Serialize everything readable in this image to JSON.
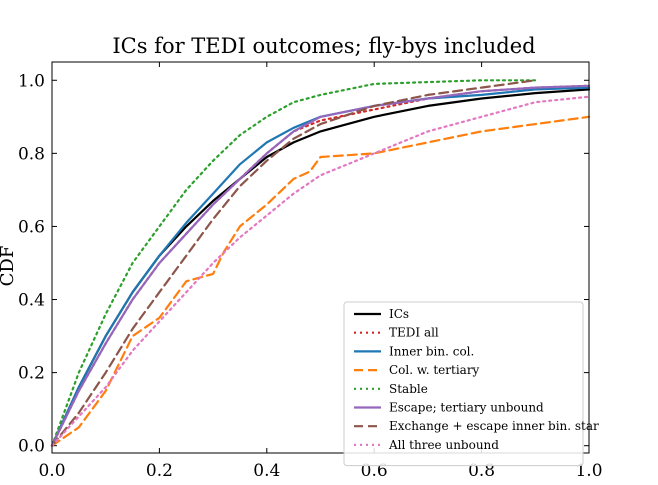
{
  "chart_data": {
    "type": "line",
    "title": "ICs for TEDI outcomes; fly-bys included",
    "xlabel": "",
    "ylabel": "CDF",
    "xlim": [
      0.0,
      1.0
    ],
    "ylim": [
      -0.02,
      1.05
    ],
    "xticks": [
      "0.0",
      "0.2",
      "0.4",
      "0.6",
      "0.8",
      "1.0"
    ],
    "yticks": [
      "0.0",
      "0.2",
      "0.4",
      "0.6",
      "0.8",
      "1.0"
    ],
    "legend_position": "lower-right",
    "series": [
      {
        "name": "ICs",
        "color": "#000000",
        "style": "solid",
        "points": [
          [
            0,
            0
          ],
          [
            0.05,
            0.16
          ],
          [
            0.1,
            0.3
          ],
          [
            0.15,
            0.42
          ],
          [
            0.2,
            0.52
          ],
          [
            0.25,
            0.6
          ],
          [
            0.3,
            0.67
          ],
          [
            0.35,
            0.73
          ],
          [
            0.4,
            0.79
          ],
          [
            0.45,
            0.83
          ],
          [
            0.5,
            0.86
          ],
          [
            0.6,
            0.9
          ],
          [
            0.7,
            0.93
          ],
          [
            0.8,
            0.95
          ],
          [
            0.9,
            0.965
          ],
          [
            1.0,
            0.975
          ]
        ]
      },
      {
        "name": "TEDI all",
        "color": "#d62728",
        "style": "dotted",
        "points": [
          [
            0,
            0
          ],
          [
            0.05,
            0.15
          ],
          [
            0.1,
            0.28
          ],
          [
            0.15,
            0.4
          ],
          [
            0.2,
            0.5
          ],
          [
            0.25,
            0.58
          ],
          [
            0.3,
            0.66
          ],
          [
            0.35,
            0.73
          ],
          [
            0.4,
            0.8
          ],
          [
            0.45,
            0.86
          ],
          [
            0.5,
            0.89
          ],
          [
            0.6,
            0.92
          ],
          [
            0.7,
            0.95
          ],
          [
            0.8,
            0.97
          ],
          [
            0.9,
            0.98
          ],
          [
            1.0,
            0.985
          ]
        ]
      },
      {
        "name": "Inner bin. col.",
        "color": "#1f77b4",
        "style": "solid",
        "points": [
          [
            0,
            0
          ],
          [
            0.05,
            0.16
          ],
          [
            0.1,
            0.3
          ],
          [
            0.15,
            0.42
          ],
          [
            0.2,
            0.52
          ],
          [
            0.25,
            0.61
          ],
          [
            0.3,
            0.69
          ],
          [
            0.35,
            0.77
          ],
          [
            0.4,
            0.83
          ],
          [
            0.45,
            0.87
          ],
          [
            0.5,
            0.9
          ],
          [
            0.6,
            0.93
          ],
          [
            0.7,
            0.95
          ],
          [
            0.8,
            0.96
          ],
          [
            0.9,
            0.975
          ],
          [
            1.0,
            0.98
          ]
        ]
      },
      {
        "name": "Col. w. tertiary",
        "color": "#ff7f0e",
        "style": "dashed",
        "points": [
          [
            0,
            0
          ],
          [
            0.05,
            0.05
          ],
          [
            0.1,
            0.15
          ],
          [
            0.15,
            0.3
          ],
          [
            0.2,
            0.35
          ],
          [
            0.25,
            0.45
          ],
          [
            0.3,
            0.47
          ],
          [
            0.32,
            0.53
          ],
          [
            0.35,
            0.6
          ],
          [
            0.4,
            0.66
          ],
          [
            0.45,
            0.73
          ],
          [
            0.48,
            0.75
          ],
          [
            0.5,
            0.79
          ],
          [
            0.6,
            0.8
          ],
          [
            0.7,
            0.83
          ],
          [
            0.8,
            0.86
          ],
          [
            0.9,
            0.88
          ],
          [
            1.0,
            0.9
          ]
        ]
      },
      {
        "name": "Stable",
        "color": "#2ca02c",
        "style": "dotted",
        "points": [
          [
            0,
            0
          ],
          [
            0.05,
            0.2
          ],
          [
            0.1,
            0.36
          ],
          [
            0.15,
            0.5
          ],
          [
            0.2,
            0.6
          ],
          [
            0.25,
            0.7
          ],
          [
            0.3,
            0.78
          ],
          [
            0.35,
            0.85
          ],
          [
            0.4,
            0.9
          ],
          [
            0.45,
            0.94
          ],
          [
            0.5,
            0.96
          ],
          [
            0.6,
            0.99
          ],
          [
            0.7,
            0.995
          ],
          [
            0.8,
            1.0
          ],
          [
            0.9,
            1.0
          ]
        ]
      },
      {
        "name": "Escape; tertiary unbound",
        "color": "#9467bd",
        "style": "solid",
        "points": [
          [
            0,
            0
          ],
          [
            0.05,
            0.15
          ],
          [
            0.1,
            0.28
          ],
          [
            0.15,
            0.4
          ],
          [
            0.2,
            0.5
          ],
          [
            0.25,
            0.58
          ],
          [
            0.3,
            0.66
          ],
          [
            0.35,
            0.73
          ],
          [
            0.4,
            0.8
          ],
          [
            0.45,
            0.86
          ],
          [
            0.5,
            0.9
          ],
          [
            0.6,
            0.93
          ],
          [
            0.7,
            0.95
          ],
          [
            0.8,
            0.97
          ],
          [
            0.9,
            0.98
          ],
          [
            1.0,
            0.985
          ]
        ]
      },
      {
        "name": "Exchange + escape inner bin. star",
        "color": "#8c564b",
        "style": "dashed",
        "points": [
          [
            0,
            0
          ],
          [
            0.05,
            0.09
          ],
          [
            0.1,
            0.2
          ],
          [
            0.15,
            0.32
          ],
          [
            0.2,
            0.42
          ],
          [
            0.25,
            0.52
          ],
          [
            0.3,
            0.62
          ],
          [
            0.35,
            0.71
          ],
          [
            0.4,
            0.78
          ],
          [
            0.45,
            0.84
          ],
          [
            0.5,
            0.88
          ],
          [
            0.6,
            0.93
          ],
          [
            0.7,
            0.96
          ],
          [
            0.8,
            0.98
          ],
          [
            0.9,
            1.0
          ]
        ]
      },
      {
        "name": "All three unbound",
        "color": "#e377c2",
        "style": "dotted",
        "points": [
          [
            0,
            0
          ],
          [
            0.05,
            0.08
          ],
          [
            0.1,
            0.16
          ],
          [
            0.15,
            0.26
          ],
          [
            0.2,
            0.34
          ],
          [
            0.25,
            0.42
          ],
          [
            0.3,
            0.5
          ],
          [
            0.35,
            0.57
          ],
          [
            0.4,
            0.63
          ],
          [
            0.45,
            0.69
          ],
          [
            0.5,
            0.74
          ],
          [
            0.6,
            0.8
          ],
          [
            0.7,
            0.86
          ],
          [
            0.8,
            0.9
          ],
          [
            0.9,
            0.94
          ],
          [
            1.0,
            0.955
          ]
        ]
      }
    ]
  }
}
